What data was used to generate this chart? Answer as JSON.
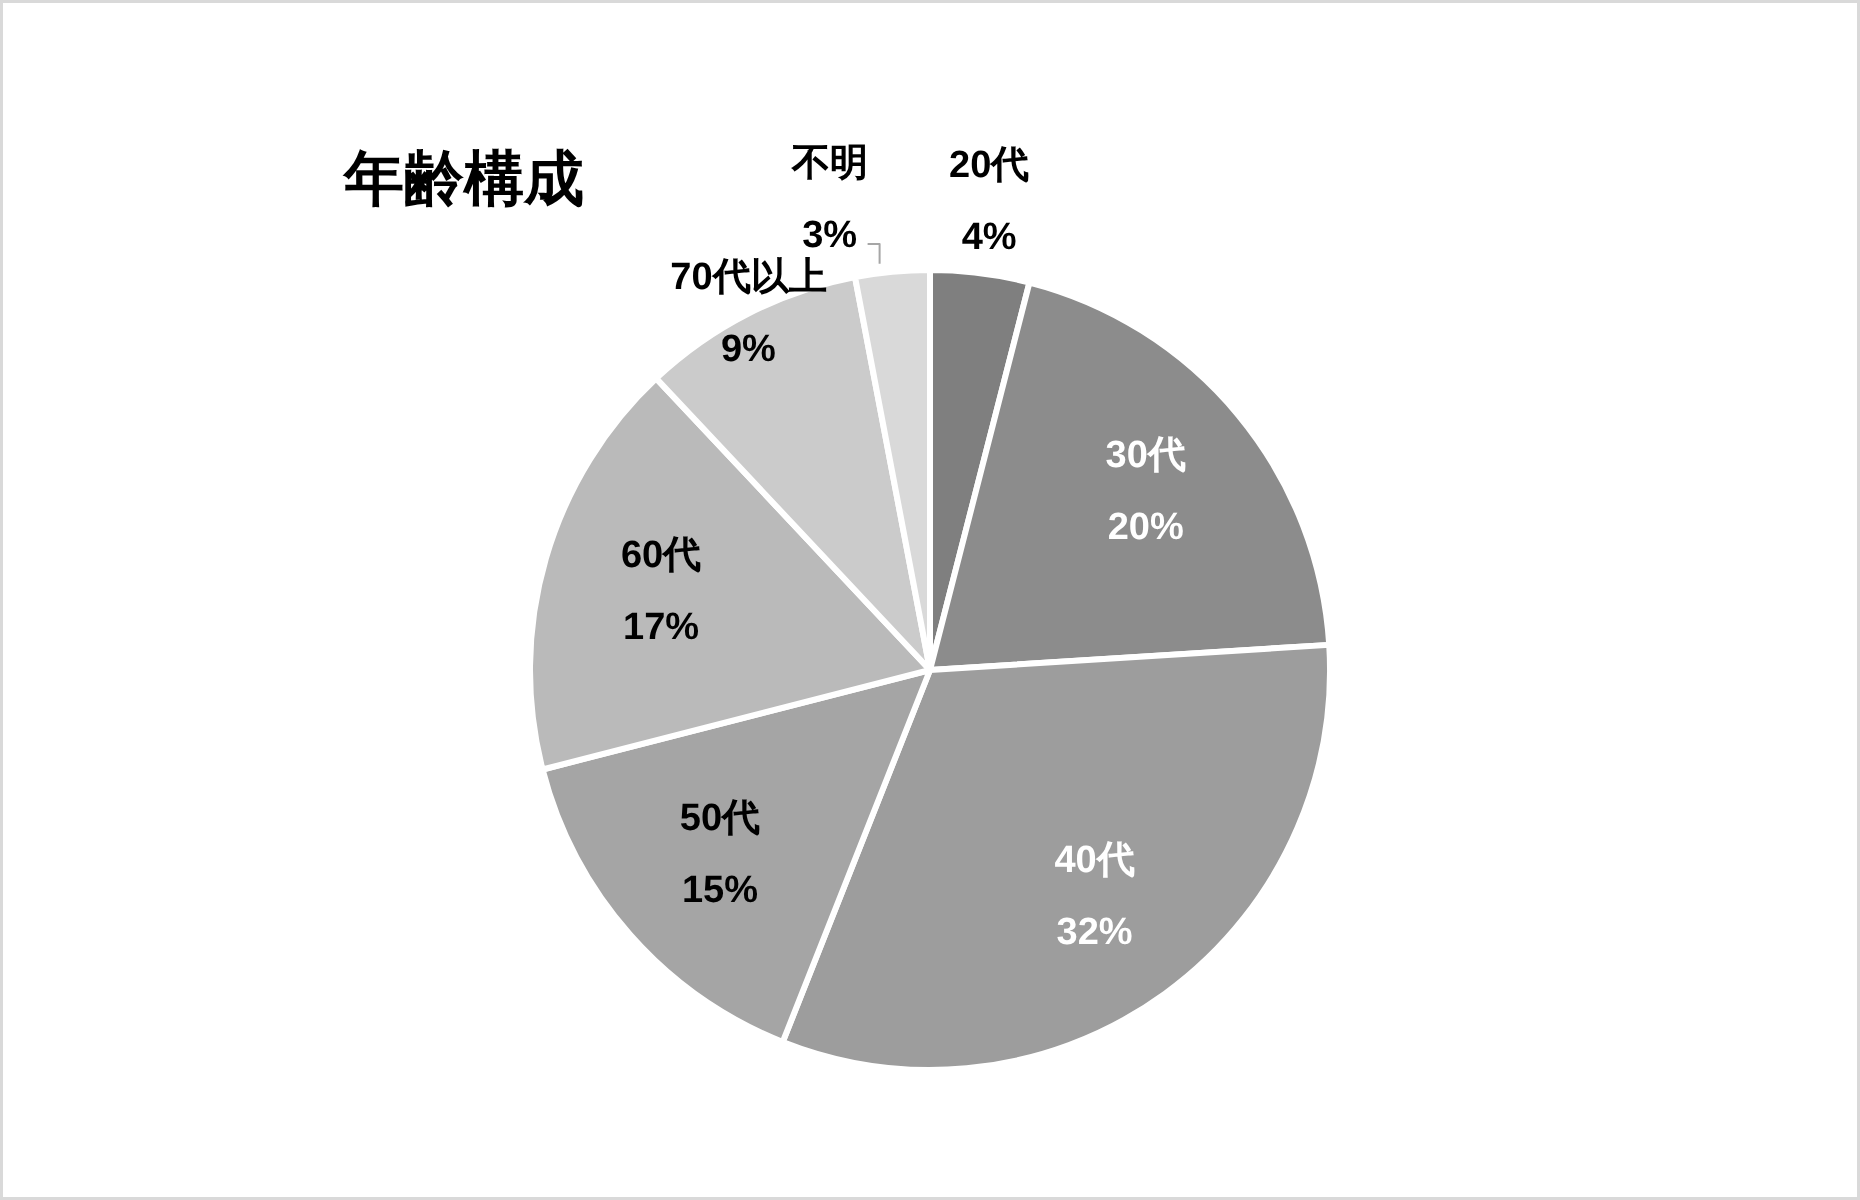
{
  "chart_data": {
    "type": "pie",
    "title": "年齢構成",
    "categories": [
      "20代",
      "30代",
      "40代",
      "50代",
      "60代",
      "70代以上",
      "不明"
    ],
    "values": [
      4,
      20,
      32,
      15,
      17,
      9,
      3
    ],
    "value_labels": [
      "4%",
      "20%",
      "32%",
      "15%",
      "17%",
      "9%",
      "3%"
    ],
    "colors": [
      "#7f7f7f",
      "#8c8c8c",
      "#9d9d9d",
      "#a5a5a5",
      "#bababa",
      "#cbcbcb",
      "#d9d9d9"
    ]
  }
}
